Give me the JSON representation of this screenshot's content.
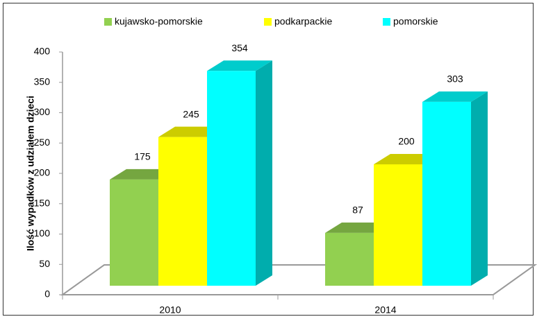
{
  "chart_data": {
    "type": "bar3d",
    "y_label": "Ilość wypadków z udziałem dzieci",
    "categories": [
      "2010",
      "2014"
    ],
    "series": [
      {
        "name": "kujawsko-pomorskie",
        "color": "#92d050",
        "values": [
          175,
          87
        ]
      },
      {
        "name": "podkarpackie",
        "color": "#ffff00",
        "values": [
          245,
          200
        ]
      },
      {
        "name": "pomorskie",
        "color": "#00ffff",
        "values": [
          354,
          303
        ]
      }
    ],
    "ylim": [
      0,
      400
    ],
    "yticks": [
      0,
      50,
      100,
      150,
      200,
      250,
      300,
      350,
      400
    ],
    "legend": "top"
  }
}
